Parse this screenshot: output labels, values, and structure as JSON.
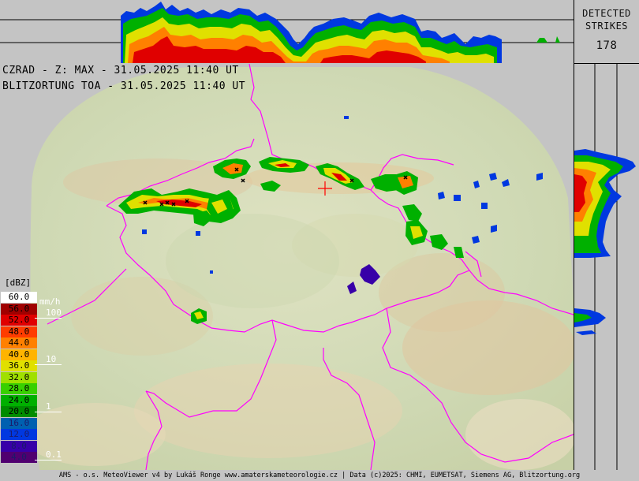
{
  "header": {
    "detected_label_line1": "DETECTED",
    "detected_label_line2": "STRIKES",
    "strike_count": "178"
  },
  "overlay": {
    "radar_line": "CZRAD - Z: MAX - 31.05.2025 11:40 UT",
    "lightning_line": "BLITZORTUNG TOA - 31.05.2025 11:40 UT"
  },
  "legend": {
    "unit": "[dBZ]",
    "rain_unit": "mm/h",
    "rows": [
      {
        "label": "60.0",
        "color": "#ffffff"
      },
      {
        "label": "56.0",
        "color": "#a00000"
      },
      {
        "label": "52.0",
        "color": "#e00000"
      },
      {
        "label": "48.0",
        "color": "#ff3c00"
      },
      {
        "label": "44.0",
        "color": "#ff8000"
      },
      {
        "label": "40.0",
        "color": "#ffb400"
      },
      {
        "label": "36.0",
        "color": "#e0e000"
      },
      {
        "label": "32.0",
        "color": "#a0e000"
      },
      {
        "label": "28.0",
        "color": "#38d000"
      },
      {
        "label": "24.0",
        "color": "#00b000"
      },
      {
        "label": "20.0",
        "color": "#008c00"
      },
      {
        "label": "16.0",
        "color": "#0060b0"
      },
      {
        "label": "12.0",
        "color": "#0038e0"
      },
      {
        "label": "8.0",
        "color": "#3800a8"
      },
      {
        "label": "4.0",
        "color": "#500070"
      }
    ],
    "rain_marks": [
      {
        "label": "100"
      },
      {
        "label": "10"
      },
      {
        "label": "1"
      },
      {
        "label": "0.1"
      }
    ]
  },
  "footer": {
    "credit": "AMS - o.s. MeteoViewer v4 by Lukáš Ronge www.amaterskameteorologie.cz | Data (c)2025: CHMI, EUMETSAT, Siemens AG, Blitzortung.org"
  },
  "colors": {
    "background": "#c4c4c4",
    "border": "#ff00ff",
    "marker": "#ff0000"
  }
}
